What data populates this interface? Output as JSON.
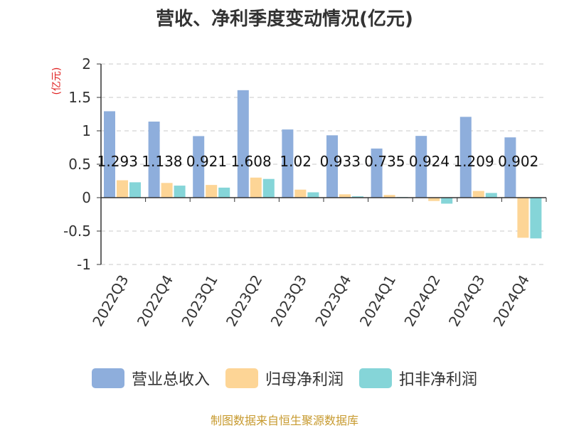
{
  "title": "营收、净利季度变动情况(亿元)",
  "source": "制图数据来自恒生聚源数据库",
  "chart_data": {
    "type": "bar",
    "title": "营收、净利季度变动情况(亿元)",
    "ylabel": "(亿元)",
    "ylim": [
      -1,
      2
    ],
    "yticks": [
      -1,
      -0.5,
      0,
      0.5,
      1,
      1.5,
      2
    ],
    "ytick_labels": [
      "-1",
      "-0.5",
      "0",
      "0.5",
      "1",
      "1.5",
      "2"
    ],
    "grid": true,
    "legend_position": "bottom",
    "categories": [
      "2022Q3",
      "2022Q4",
      "2023Q1",
      "2023Q2",
      "2023Q3",
      "2023Q4",
      "2024Q1",
      "2024Q2",
      "2024Q3",
      "2024Q4"
    ],
    "series": [
      {
        "name": "营业总收入",
        "color": "#8eaedc",
        "values": [
          1.293,
          1.138,
          0.921,
          1.608,
          1.02,
          0.933,
          0.735,
          0.924,
          1.209,
          0.902
        ]
      },
      {
        "name": "归母净利润",
        "color": "#fdd596",
        "values": [
          0.26,
          0.22,
          0.19,
          0.3,
          0.12,
          0.05,
          0.04,
          -0.05,
          0.1,
          -0.6
        ]
      },
      {
        "name": "扣非净利润",
        "color": "#85d5d8",
        "values": [
          0.23,
          0.18,
          0.15,
          0.28,
          0.08,
          0.02,
          0.01,
          -0.09,
          0.07,
          -0.61
        ]
      }
    ],
    "data_labels": [
      "1.293",
      "1.138",
      "0.921",
      "1.608",
      "1.02",
      "0.933",
      "0.735",
      "0.924",
      "1.209",
      "0.902"
    ]
  }
}
